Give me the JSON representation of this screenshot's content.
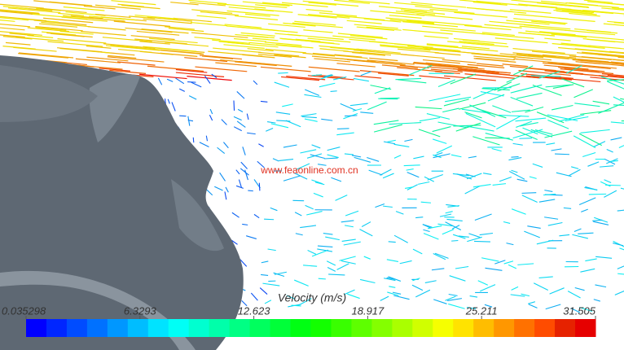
{
  "watermark": "www.feaonline.com.cn",
  "colorbar": {
    "title": "Velocity (m/s)",
    "range": [
      0.035298,
      31.505
    ],
    "ticks": [
      0.035298,
      6.3293,
      12.623,
      18.917,
      25.211,
      31.505
    ]
  }
}
